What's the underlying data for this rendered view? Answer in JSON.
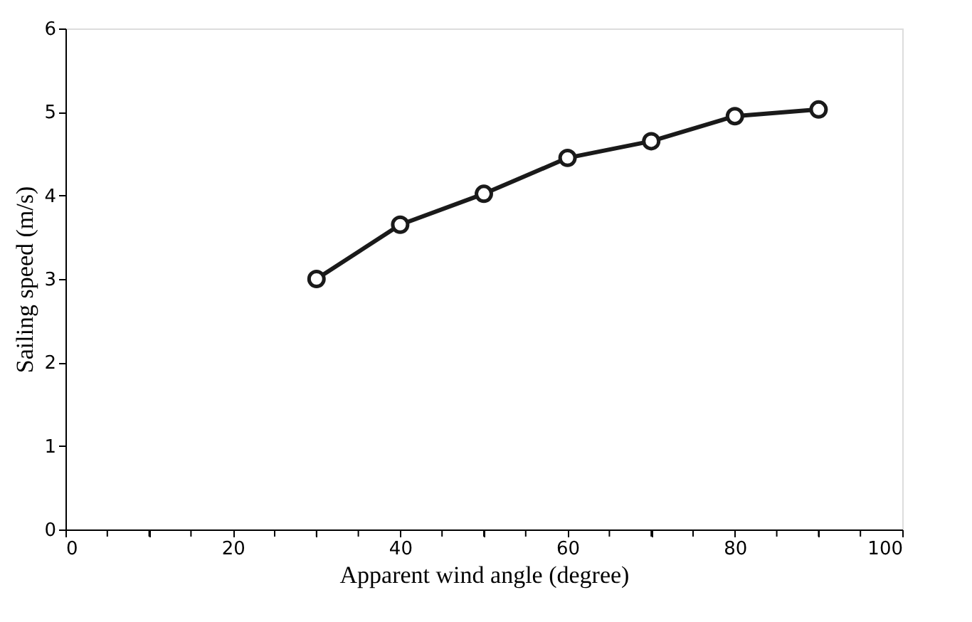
{
  "chart_data": {
    "type": "line",
    "xlabel": "Apparent wind angle (degree)",
    "ylabel": "Sailing speed (m/s)",
    "x": [
      30,
      40,
      50,
      60,
      70,
      80,
      90
    ],
    "series": [
      {
        "color": "#1a1a1a",
        "values": [
          3.0,
          3.65,
          4.02,
          4.45,
          4.65,
          4.95,
          5.03
        ]
      }
    ],
    "xlim": [
      0,
      100
    ],
    "ylim": [
      0,
      6
    ],
    "xticks": [
      0,
      {
        "value": 5,
        "label": null
      },
      {
        "value": 10,
        "label": null
      },
      {
        "value": 15,
        "label": null
      },
      20,
      {
        "value": 25,
        "label": null
      },
      {
        "value": 30,
        "label": null
      },
      {
        "value": 35,
        "label": null
      },
      40,
      {
        "value": 45,
        "label": null
      },
      {
        "value": 50,
        "label": null
      },
      {
        "value": 55,
        "label": null
      },
      60,
      {
        "value": 65,
        "label": null
      },
      {
        "value": 70,
        "label": null
      },
      {
        "value": 75,
        "label": null
      },
      80,
      {
        "value": 85,
        "label": null
      },
      {
        "value": 90,
        "label": null
      },
      {
        "value": 95,
        "label": null
      },
      100
    ],
    "yticks": [
      0,
      1,
      2,
      3,
      4,
      5,
      6
    ],
    "grid": false,
    "marker": "circle",
    "line_style": "solid"
  }
}
